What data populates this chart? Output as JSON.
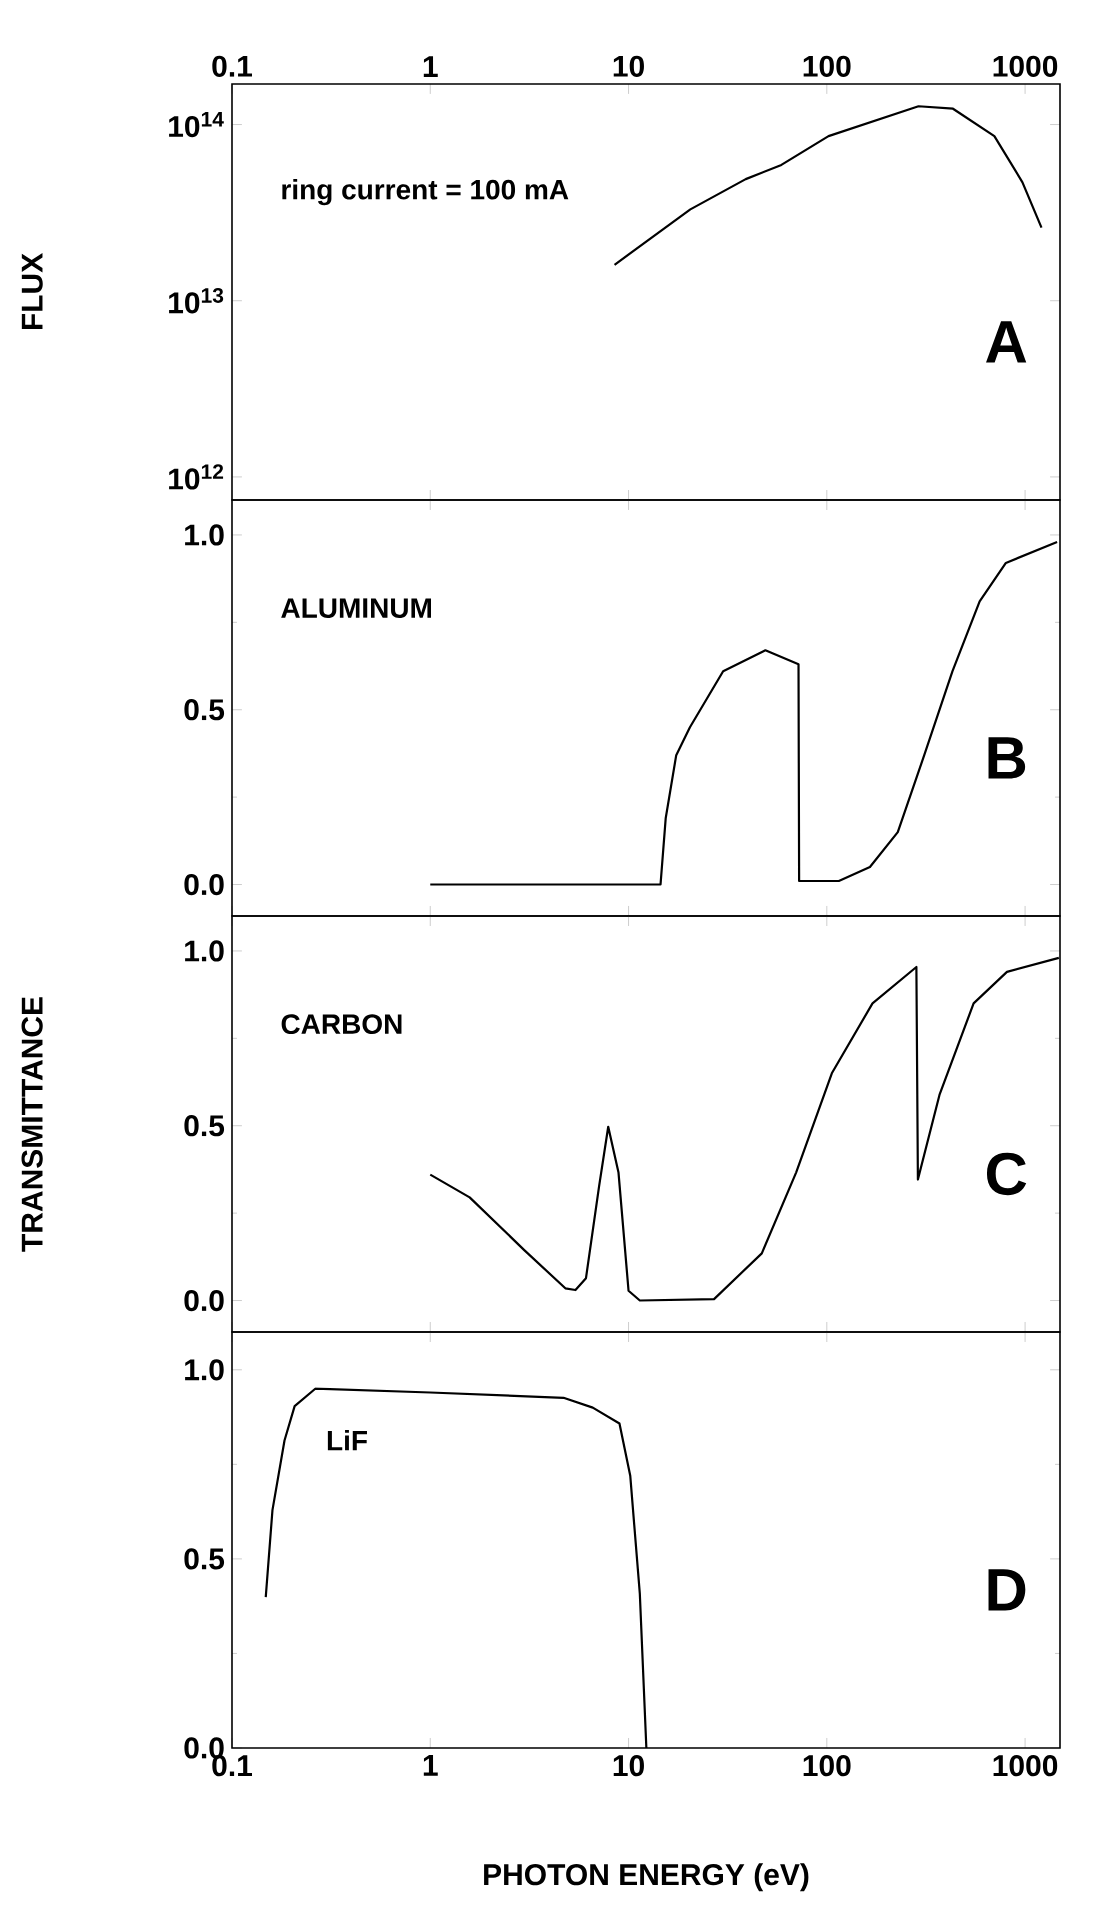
{
  "chart_data": [
    {
      "type": "line",
      "log": "xy",
      "ylabel": "FLUX",
      "xlim": [
        0.1,
        1500
      ],
      "xticks": [
        0.1,
        1,
        10,
        100,
        1000
      ],
      "ylim": [
        740000000000.0,
        170000000000000.0
      ],
      "yticks": [
        {
          "value": 1000000000000.0,
          "label": "10$^{12}$"
        },
        {
          "value": 10000000000000.0,
          "label": "10$^{13}$"
        },
        {
          "value": 100000000000000.0,
          "label": "10$^{14}$"
        }
      ],
      "annotations": [
        "ring current = 100 mA",
        "A"
      ],
      "series": [
        {
          "color": "#000000",
          "x": [
            8.5,
            20.5,
            39,
            59,
            102,
            290,
            433,
            700,
            970,
            1210
          ],
          "values": [
            16000000000000.0,
            33000000000000.0,
            49000000000000.0,
            59000000000000.0,
            86000000000000.0,
            127000000000000.0,
            123000000000000.0,
            86000000000000.0,
            47000000000000.0,
            26000000000000.0
          ]
        }
      ]
    },
    {
      "type": "line",
      "log": "x",
      "tick_labels": "y",
      "xlim": [
        0.1,
        1500
      ],
      "xticks": [
        0.1,
        1,
        10,
        100,
        1000
      ],
      "ylim": [
        -0.09,
        1.1
      ],
      "yticks": [
        {
          "value": 0,
          "label": "0.0"
        },
        {
          "value": 0.25,
          "label": null
        },
        {
          "value": 0.5,
          "label": "0.5"
        },
        {
          "value": 0.75,
          "label": null
        },
        {
          "value": 1,
          "label": "1.0"
        }
      ],
      "annotations": [
        "ALUMINUM",
        "B"
      ],
      "series": [
        {
          "color": "#000000",
          "x": [
            1,
            14.5,
            15.4,
            17.4,
            20.4,
            30,
            49,
            72,
            72.5,
            115,
            165,
            228,
            310,
            430,
            590,
            800,
            1450
          ],
          "values": [
            0,
            0,
            0.19,
            0.37,
            0.45,
            0.61,
            0.67,
            0.63,
            0.01,
            0.01,
            0.05,
            0.15,
            0.37,
            0.61,
            0.81,
            0.92,
            0.98
          ]
        }
      ]
    },
    {
      "type": "line",
      "log": "x",
      "tick_labels": "y",
      "ylabel": "TRANSMITTANCE",
      "xlim": [
        0.1,
        1500
      ],
      "xticks": [
        0.1,
        1,
        10,
        100,
        1000
      ],
      "ylim": [
        -0.09,
        1.1
      ],
      "yticks": [
        {
          "value": 0,
          "label": "0.0"
        },
        {
          "value": 0.25,
          "label": null
        },
        {
          "value": 0.5,
          "label": "0.5"
        },
        {
          "value": 0.75,
          "label": null
        },
        {
          "value": 1,
          "label": "1.0"
        }
      ],
      "annotations": [
        "CARBON",
        "C"
      ],
      "series": [
        {
          "color": "#000000",
          "x": [
            1,
            1.58,
            2.97,
            4.8,
            5.4,
            6.1,
            7.1,
            7.9,
            8.9,
            10,
            11.4,
            27,
            47,
            70,
            106,
            170,
            283,
            288,
            370,
            550,
            810,
            1480
          ],
          "values": [
            0.36,
            0.295,
            0.145,
            0.035,
            0.03,
            0.064,
            0.326,
            0.497,
            0.366,
            0.028,
            0,
            0.004,
            0.135,
            0.366,
            0.65,
            0.85,
            0.954,
            0.346,
            0.588,
            0.85,
            0.94,
            0.98
          ]
        }
      ]
    },
    {
      "type": "line",
      "log": "x",
      "xlabel": "PHOTON ENERGY (eV)",
      "xlim": [
        0.1,
        1500
      ],
      "xticks": [
        0.1,
        1,
        10,
        100,
        1000
      ],
      "ylim": [
        0,
        1.1
      ],
      "yticks": [
        {
          "value": 0,
          "label": "0.0"
        },
        {
          "value": 0.25,
          "label": null
        },
        {
          "value": 0.5,
          "label": "0.5"
        },
        {
          "value": 0.75,
          "label": null
        },
        {
          "value": 1,
          "label": "1.0"
        }
      ],
      "annotations": [
        "LiF",
        "D"
      ],
      "series": [
        {
          "color": "#000000",
          "x": [
            0.148,
            0.16,
            0.184,
            0.207,
            0.263,
            1,
            4.7,
            6.6,
            9.0,
            10.2,
            11.4,
            12.3
          ],
          "values": [
            0.399,
            0.629,
            0.813,
            0.904,
            0.95,
            0.94,
            0.926,
            0.9,
            0.858,
            0.72,
            0.408,
            0
          ]
        }
      ]
    }
  ]
}
